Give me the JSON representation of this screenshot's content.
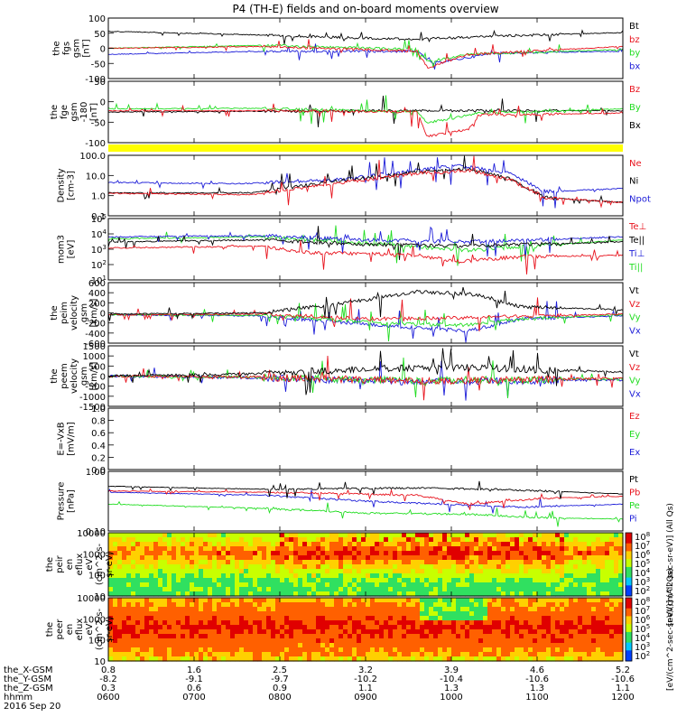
{
  "title": "P4 (TH-E) fields and on-board moments overview",
  "colors": {
    "black": "#000000",
    "red": "#e8141e",
    "green": "#22dd22",
    "blue": "#1d1dd8",
    "yellow": "#ffff00"
  },
  "chart_data": [
    {
      "type": "line",
      "id": "fgs",
      "ylabel": [
        "the",
        "fgs",
        "gsm",
        "[nT]"
      ],
      "yticks": [
        "100",
        "50",
        "0",
        "-50",
        "-100"
      ],
      "ylim": [
        -100,
        100
      ],
      "series": [
        {
          "name": "Bt",
          "color": "black"
        },
        {
          "name": "bz",
          "color": "red"
        },
        {
          "name": "by",
          "color": "green"
        },
        {
          "name": "bx",
          "color": "blue"
        }
      ]
    },
    {
      "type": "line",
      "id": "fge",
      "ylabel": [
        "the",
        "fge",
        "gsm",
        "-180",
        "[nT]"
      ],
      "yticks": [
        "50",
        "0",
        "-50",
        "-100"
      ],
      "ylim": [
        -120,
        50
      ],
      "series": [
        {
          "name": "Bz",
          "color": "red"
        },
        {
          "name": "By",
          "color": "green"
        },
        {
          "name": "Bx",
          "color": "black"
        }
      ]
    },
    {
      "type": "line",
      "id": "density",
      "scale": "log",
      "ylabel": [
        "Density",
        "[cm-3]"
      ],
      "yticks": [
        "100.0",
        "10.0",
        "1.0",
        "0.1"
      ],
      "ylim": [
        0.1,
        100
      ],
      "series": [
        {
          "name": "Ne",
          "color": "red"
        },
        {
          "name": "Ni",
          "color": "black"
        },
        {
          "name": "Npot",
          "color": "blue"
        }
      ]
    },
    {
      "type": "line",
      "id": "temperature",
      "scale": "log",
      "ylabel": [
        "mom3",
        "[eV]"
      ],
      "yticks": [
        "10^5",
        "10^4",
        "10^3",
        "10^2",
        "10^1"
      ],
      "ylim": [
        10,
        100000
      ],
      "series": [
        {
          "name": "Te⊥",
          "color": "red"
        },
        {
          "name": "Te||",
          "color": "black"
        },
        {
          "name": "Ti⊥",
          "color": "blue"
        },
        {
          "name": "Ti||",
          "color": "green"
        }
      ]
    },
    {
      "type": "line",
      "id": "peim",
      "ylabel": [
        "the",
        "peim",
        "velocity",
        "gsm",
        "[km/s]"
      ],
      "yticks": [
        "600",
        "400",
        "200",
        "0",
        "-200",
        "-400",
        "-600"
      ],
      "ylim": [
        -600,
        600
      ],
      "series": [
        {
          "name": "Vt",
          "color": "black"
        },
        {
          "name": "Vz",
          "color": "red"
        },
        {
          "name": "Vy",
          "color": "green"
        },
        {
          "name": "Vx",
          "color": "blue"
        }
      ]
    },
    {
      "type": "line",
      "id": "peem",
      "ylabel": [
        "the",
        "peem",
        "velocity",
        "gsm",
        "[km/s]"
      ],
      "yticks": [
        "1500",
        "1000",
        "500",
        "0",
        "-500",
        "-1000",
        "-1500"
      ],
      "ylim": [
        -1500,
        1500
      ],
      "series": [
        {
          "name": "Vt",
          "color": "black"
        },
        {
          "name": "Vz",
          "color": "red"
        },
        {
          "name": "Vy",
          "color": "green"
        },
        {
          "name": "Vx",
          "color": "blue"
        }
      ]
    },
    {
      "type": "line",
      "id": "efield",
      "ylabel": [
        "E=-VxB",
        "[mV/m]"
      ],
      "yticks": [
        "1.0",
        "0.8",
        "0.6",
        "0.4",
        "0.2",
        "0.0"
      ],
      "ylim": [
        0,
        1
      ],
      "series": [
        {
          "name": "Ez",
          "color": "red"
        },
        {
          "name": "Ey",
          "color": "green"
        },
        {
          "name": "Ex",
          "color": "blue"
        }
      ]
    },
    {
      "type": "line",
      "id": "pressure",
      "scale": "log",
      "ylabel": [
        "Pressure",
        "[nPa]"
      ],
      "yticks": [
        "1.00",
        "0.10"
      ],
      "ylim": [
        0.05,
        3
      ],
      "series": [
        {
          "name": "Pt",
          "color": "black"
        },
        {
          "name": "Pb",
          "color": "red"
        },
        {
          "name": "Pe",
          "color": "green"
        },
        {
          "name": "Pi",
          "color": "blue"
        }
      ]
    },
    {
      "type": "heatmap",
      "id": "peir",
      "ylabel": [
        "the",
        "peir",
        "en",
        "eflux",
        "eV",
        "(cm^2-s-",
        "sr-eV)"
      ],
      "yticks": [
        "10000",
        "1000",
        "100",
        "10"
      ],
      "colorbar": [
        "10^8",
        "10^7",
        "10^6",
        "10^5",
        "10^4",
        "10^3",
        "10^2"
      ],
      "colorbar_label": "[eV/(cm^2-sec-sr-eV)] (All Qs)"
    },
    {
      "type": "heatmap",
      "id": "peer",
      "ylabel": [
        "the",
        "peer",
        "en",
        "eflux",
        "eV",
        "(cm^2-s-",
        "sr-eV)"
      ],
      "yticks": [
        "10000",
        "1000",
        "100",
        "10"
      ],
      "colorbar": [
        "10^8",
        "10^7",
        "10^6",
        "10^5",
        "10^4",
        "10^3",
        "10^2"
      ],
      "colorbar_label": "[eV/(cm^2-sec-sr-eV)] (All Qs)"
    }
  ],
  "xaxis": {
    "rows": [
      {
        "label": "the_X-GSM",
        "values": [
          "0.8",
          "1.6",
          "2.5",
          "3.2",
          "3.9",
          "4.6",
          "5.2"
        ]
      },
      {
        "label": "the_Y-GSM",
        "values": [
          "-8.2",
          "-9.1",
          "-9.7",
          "-10.2",
          "-10.4",
          "-10.6",
          "-10.6"
        ]
      },
      {
        "label": "the_Z-GSM",
        "values": [
          "0.3",
          "0.6",
          "0.9",
          "1.1",
          "1.3",
          "1.3",
          "1.1"
        ]
      },
      {
        "label": "hhmm",
        "values": [
          "0600",
          "0700",
          "0800",
          "0900",
          "1000",
          "1100",
          "1200"
        ]
      }
    ],
    "date": "2016 Sep 20"
  }
}
